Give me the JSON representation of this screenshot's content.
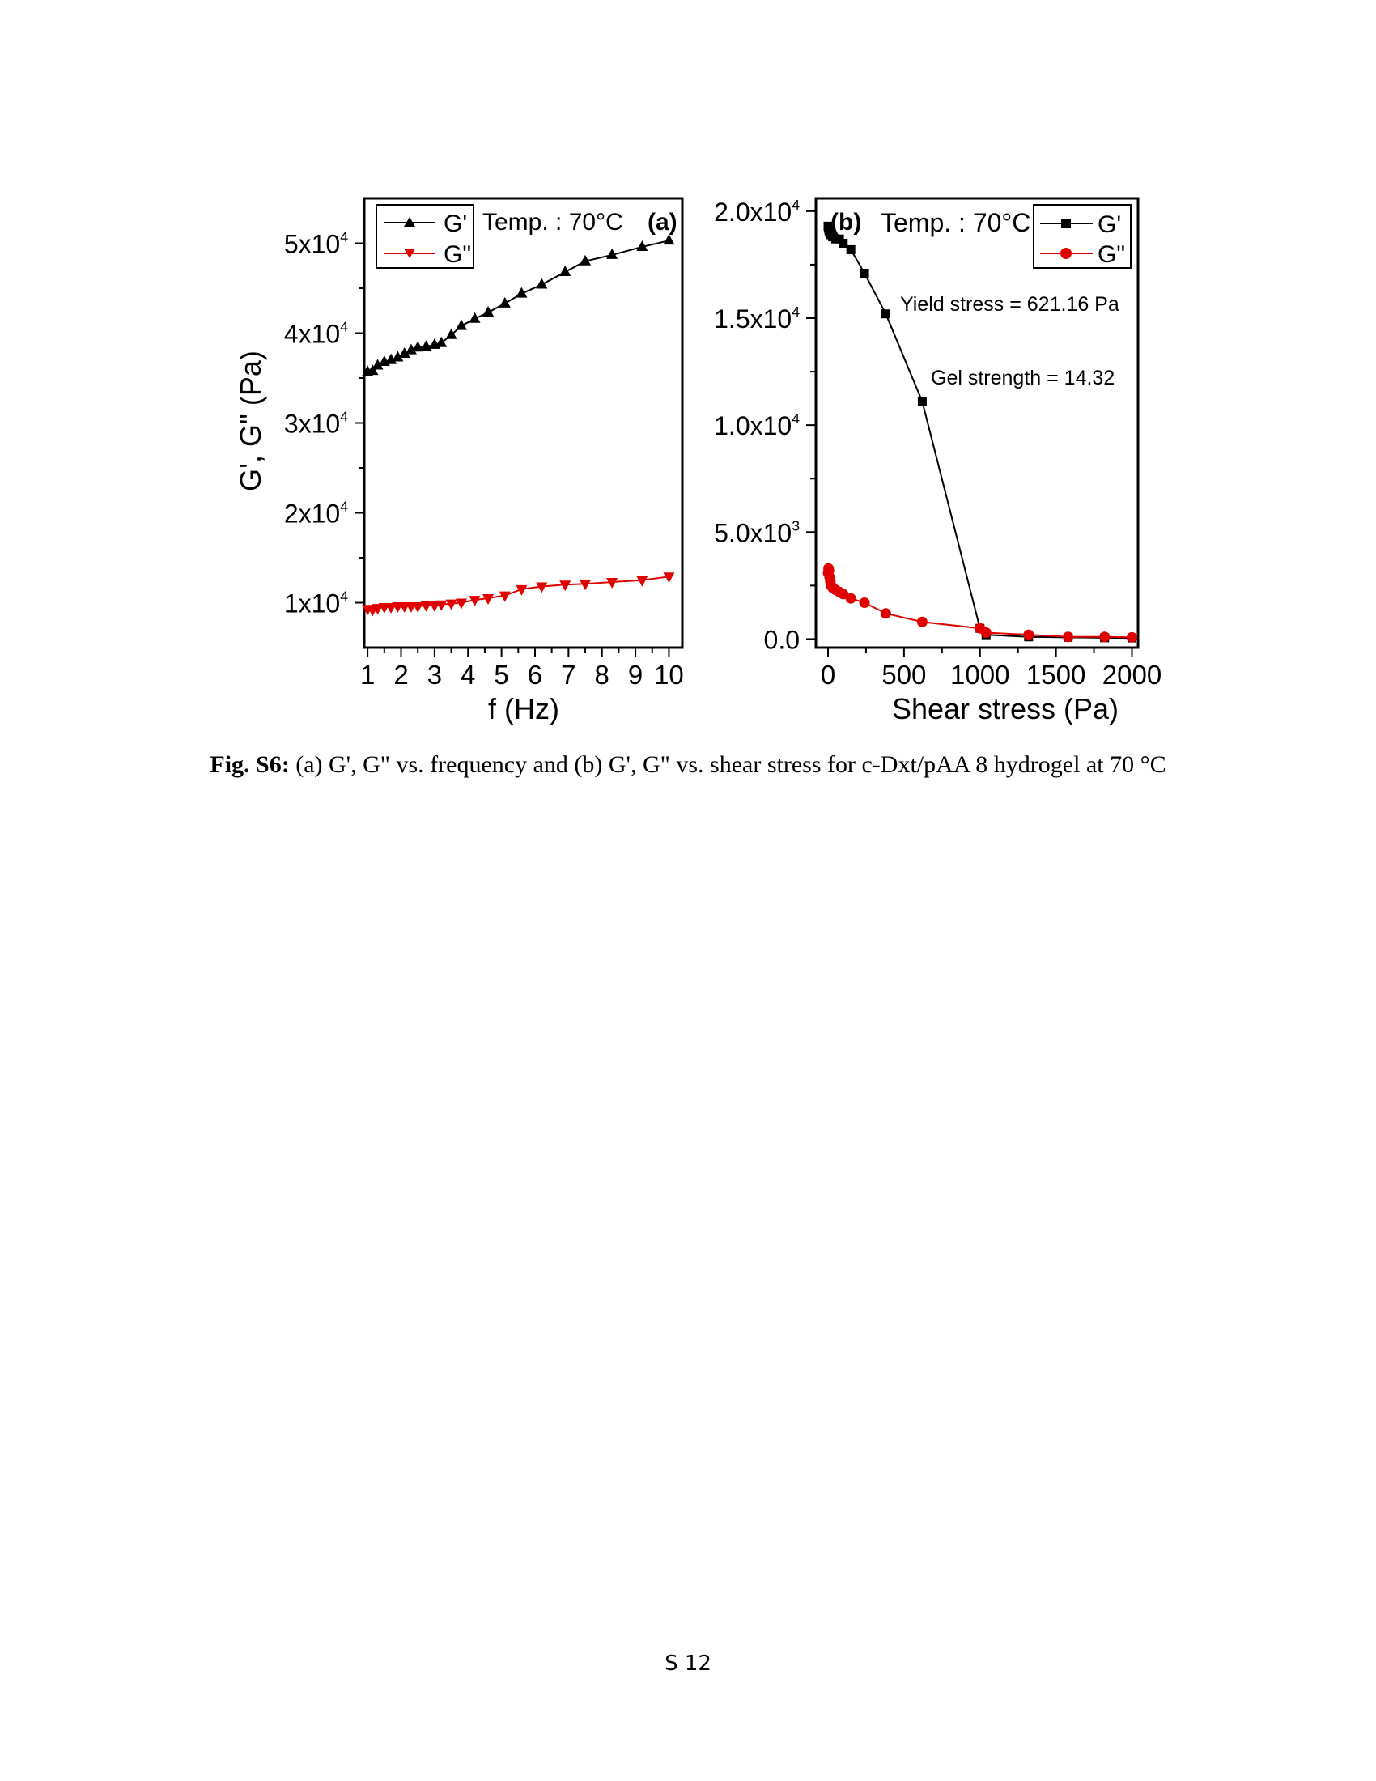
{
  "caption": {
    "label": "Fig. S6:",
    "text": " (a) G', G\" vs. frequency  and (b) G', G\" vs. shear stress for c-Dxt/pAA 8 hydrogel at 70 °C"
  },
  "page_number": "S 12",
  "chart_data": [
    {
      "type": "line",
      "panel_label": "(a)",
      "annotation": "Temp. : 70°C",
      "xlabel": "f (Hz)",
      "ylabel": "G', G\" (Pa)",
      "xlim": [
        0.9,
        10.4
      ],
      "ylim": [
        5000,
        55000
      ],
      "x_ticks": [
        "1",
        "2",
        "3",
        "4",
        "5",
        "6",
        "7",
        "8",
        "9",
        "10"
      ],
      "y_ticks": [
        "1x10^4",
        "2x10^4",
        "3x10^4",
        "4x10^4",
        "5x10^4"
      ],
      "legend": "top-left",
      "series": [
        {
          "name": "G'",
          "color": "#000000",
          "marker": "triangle-up",
          "x": [
            1.0,
            1.15,
            1.3,
            1.5,
            1.7,
            1.9,
            2.1,
            2.3,
            2.5,
            2.75,
            3.0,
            3.2,
            3.5,
            3.8,
            4.2,
            4.6,
            5.1,
            5.6,
            6.2,
            6.9,
            7.5,
            8.3,
            9.2,
            10.0
          ],
          "y": [
            35700,
            35800,
            36400,
            36800,
            37000,
            37300,
            37700,
            38100,
            38400,
            38500,
            38700,
            38900,
            39800,
            40800,
            41600,
            42300,
            43300,
            44400,
            45400,
            46800,
            48000,
            48700,
            49600,
            50300
          ]
        },
        {
          "name": "G\"",
          "color": "#e00000",
          "marker": "triangle-down",
          "x": [
            1.0,
            1.15,
            1.3,
            1.5,
            1.7,
            1.9,
            2.1,
            2.3,
            2.5,
            2.75,
            3.0,
            3.2,
            3.5,
            3.8,
            4.2,
            4.6,
            5.1,
            5.6,
            6.2,
            6.9,
            7.5,
            8.3,
            9.2,
            10.0
          ],
          "y": [
            9300,
            9200,
            9400,
            9500,
            9500,
            9600,
            9600,
            9600,
            9600,
            9700,
            9700,
            9800,
            9900,
            10000,
            10300,
            10500,
            10800,
            11500,
            11800,
            12000,
            12100,
            12300,
            12500,
            12900
          ]
        }
      ]
    },
    {
      "type": "line",
      "panel_label": "(b)",
      "annotation": "Temp. : 70°C",
      "annotations": [
        "Yield stress = 621.16 Pa",
        "Gel strength = 14.32"
      ],
      "xlabel": "Shear stress (Pa)",
      "ylabel": "",
      "xlim": [
        -80,
        2040
      ],
      "ylim": [
        -400,
        20600
      ],
      "x_ticks": [
        "0",
        "500",
        "1000",
        "1500",
        "2000"
      ],
      "y_ticks": [
        "0.0",
        "5.0x10^3",
        "1.0x10^4",
        "1.5x10^4",
        "2.0x10^4"
      ],
      "legend": "top-right",
      "series": [
        {
          "name": "G'",
          "color": "#000000",
          "marker": "square",
          "x": [
            0,
            3,
            6,
            10,
            15,
            20,
            30,
            50,
            75,
            100,
            150,
            240,
            380,
            620,
            1000,
            1040,
            1320,
            1580,
            1820,
            2000
          ],
          "y": [
            19300,
            19200,
            19100,
            19000,
            18900,
            18900,
            18800,
            18700,
            18700,
            18500,
            18200,
            17100,
            15200,
            11100,
            500,
            200,
            100,
            80,
            60,
            50
          ]
        },
        {
          "name": "G\"",
          "color": "#e00000",
          "marker": "circle",
          "x": [
            0,
            3,
            6,
            10,
            15,
            20,
            30,
            50,
            75,
            100,
            150,
            240,
            380,
            620,
            1000,
            1040,
            1320,
            1580,
            1820,
            2000
          ],
          "y": [
            3100,
            3300,
            3200,
            2900,
            2700,
            2500,
            2400,
            2300,
            2200,
            2100,
            1900,
            1700,
            1200,
            800,
            500,
            300,
            200,
            100,
            100,
            80
          ]
        }
      ]
    }
  ]
}
